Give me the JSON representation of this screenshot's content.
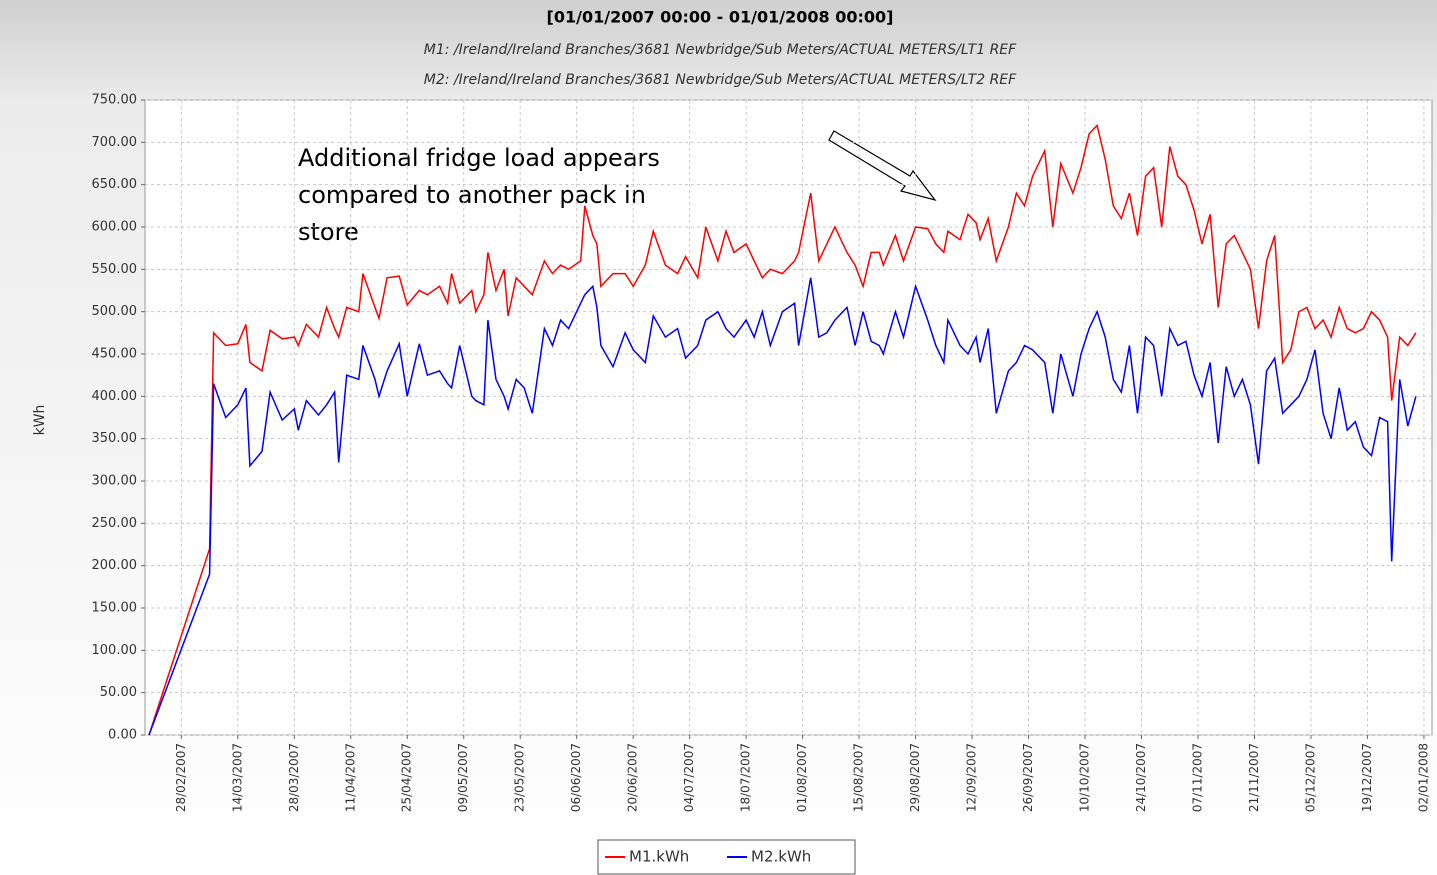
{
  "chart_data": {
    "type": "line",
    "title": "[01/01/2007 00:00 - 01/01/2008 00:00]",
    "subtitles": [
      "M1: /Ireland/Ireland Branches/3681 Newbridge/Sub Meters/ACTUAL METERS/LT1 REF",
      "M2: /Ireland/Ireland Branches/3681 Newbridge/Sub Meters/ACTUAL METERS/LT2 REF"
    ],
    "y_label": "kWh",
    "annotation": [
      "Additional fridge load appears",
      "compared to another pack in",
      "store"
    ],
    "x": [
      "20/02/2007",
      "07/03/2007",
      "08/03/2007",
      "11/03/2007",
      "14/03/2007",
      "16/03/2007",
      "17/03/2007",
      "20/03/2007",
      "22/03/2007",
      "25/03/2007",
      "28/03/2007",
      "29/03/2007",
      "31/03/2007",
      "03/04/2007",
      "05/04/2007",
      "07/04/2007",
      "08/04/2007",
      "10/04/2007",
      "13/04/2007",
      "14/04/2007",
      "17/04/2007",
      "18/04/2007",
      "20/04/2007",
      "23/04/2007",
      "25/04/2007",
      "28/04/2007",
      "30/04/2007",
      "03/05/2007",
      "05/05/2007",
      "06/05/2007",
      "08/05/2007",
      "11/05/2007",
      "12/05/2007",
      "14/05/2007",
      "15/05/2007",
      "17/05/2007",
      "19/05/2007",
      "20/05/2007",
      "22/05/2007",
      "24/05/2007",
      "26/05/2007",
      "29/05/2007",
      "31/05/2007",
      "02/06/2007",
      "04/06/2007",
      "07/06/2007",
      "08/06/2007",
      "10/06/2007",
      "11/06/2007",
      "12/06/2007",
      "15/06/2007",
      "18/06/2007",
      "20/06/2007",
      "23/06/2007",
      "25/06/2007",
      "28/06/2007",
      "01/07/2007",
      "03/07/2007",
      "06/07/2007",
      "08/07/2007",
      "11/07/2007",
      "13/07/2007",
      "15/07/2007",
      "18/07/2007",
      "20/07/2007",
      "22/07/2007",
      "24/07/2007",
      "27/07/2007",
      "30/07/2007",
      "31/07/2007",
      "03/08/2007",
      "05/08/2007",
      "07/08/2007",
      "09/08/2007",
      "12/08/2007",
      "14/08/2007",
      "16/08/2007",
      "18/08/2007",
      "20/08/2007",
      "21/08/2007",
      "24/08/2007",
      "26/08/2007",
      "29/08/2007",
      "01/09/2007",
      "03/09/2007",
      "05/09/2007",
      "06/09/2007",
      "09/09/2007",
      "11/09/2007",
      "13/09/2007",
      "14/09/2007",
      "16/09/2007",
      "18/09/2007",
      "21/09/2007",
      "23/09/2007",
      "25/09/2007",
      "27/09/2007",
      "30/09/2007",
      "02/10/2007",
      "04/10/2007",
      "07/10/2007",
      "09/10/2007",
      "11/10/2007",
      "13/10/2007",
      "15/10/2007",
      "17/10/2007",
      "19/10/2007",
      "21/10/2007",
      "23/10/2007",
      "25/10/2007",
      "27/10/2007",
      "29/10/2007",
      "31/10/2007",
      "02/11/2007",
      "04/11/2007",
      "06/11/2007",
      "08/11/2007",
      "10/11/2007",
      "12/11/2007",
      "14/11/2007",
      "16/11/2007",
      "18/11/2007",
      "20/11/2007",
      "22/11/2007",
      "24/11/2007",
      "26/11/2007",
      "28/11/2007",
      "30/11/2007",
      "02/12/2007",
      "04/12/2007",
      "06/12/2007",
      "08/12/2007",
      "10/12/2007",
      "12/12/2007",
      "14/12/2007",
      "16/12/2007",
      "18/12/2007",
      "20/12/2007",
      "22/12/2007",
      "24/12/2007",
      "25/12/2007",
      "27/12/2007",
      "29/12/2007",
      "31/12/2007"
    ],
    "series": [
      {
        "name": "M1.kWh",
        "color": "#ff0000",
        "values": [
          0,
          220,
          475,
          460,
          462,
          485,
          440,
          430,
          478,
          468,
          470,
          460,
          485,
          470,
          505,
          480,
          470,
          505,
          500,
          545,
          505,
          492,
          540,
          542,
          508,
          525,
          520,
          530,
          510,
          545,
          510,
          525,
          500,
          520,
          570,
          525,
          550,
          495,
          540,
          530,
          520,
          560,
          545,
          555,
          550,
          560,
          625,
          590,
          580,
          530,
          545,
          545,
          530,
          555,
          595,
          555,
          545,
          565,
          540,
          600,
          560,
          595,
          570,
          580,
          560,
          540,
          550,
          545,
          560,
          570,
          640,
          560,
          580,
          600,
          570,
          555,
          530,
          570,
          570,
          555,
          590,
          560,
          600,
          598,
          580,
          570,
          595,
          585,
          615,
          605,
          585,
          610,
          560,
          600,
          640,
          625,
          660,
          690,
          600,
          675,
          640,
          670,
          710,
          720,
          680,
          625,
          610,
          640,
          590,
          660,
          670,
          600,
          695,
          660,
          650,
          620,
          580,
          615,
          505,
          580,
          590,
          570,
          550,
          480,
          560,
          590,
          440,
          455,
          500,
          505,
          480,
          490,
          470,
          505,
          480,
          475,
          480,
          500,
          490,
          470,
          395,
          470,
          460,
          475
        ]
      },
      {
        "name": "M2.kWh",
        "color": "#0000ff",
        "values": [
          0,
          190,
          415,
          375,
          390,
          410,
          318,
          335,
          405,
          372,
          385,
          360,
          395,
          378,
          390,
          405,
          322,
          425,
          420,
          460,
          420,
          400,
          430,
          462,
          400,
          462,
          425,
          430,
          415,
          410,
          460,
          400,
          395,
          390,
          490,
          420,
          400,
          385,
          420,
          410,
          380,
          480,
          460,
          490,
          480,
          510,
          520,
          530,
          505,
          460,
          435,
          475,
          455,
          440,
          495,
          470,
          480,
          445,
          460,
          490,
          500,
          480,
          470,
          490,
          470,
          500,
          460,
          500,
          510,
          460,
          540,
          470,
          475,
          490,
          505,
          460,
          500,
          465,
          460,
          450,
          500,
          470,
          530,
          490,
          460,
          440,
          490,
          460,
          450,
          470,
          440,
          480,
          380,
          430,
          440,
          460,
          455,
          440,
          380,
          450,
          400,
          450,
          480,
          500,
          470,
          420,
          405,
          460,
          380,
          470,
          460,
          400,
          480,
          460,
          465,
          425,
          400,
          440,
          345,
          435,
          400,
          420,
          390,
          320,
          430,
          445,
          380,
          390,
          400,
          420,
          455,
          380,
          350,
          410,
          360,
          370,
          340,
          330,
          375,
          370,
          205,
          420,
          365,
          400
        ]
      }
    ],
    "xlim": [
      "19/02/2007",
      "04/01/2008"
    ],
    "xticks": [
      "28/02/2007",
      "14/03/2007",
      "28/03/2007",
      "11/04/2007",
      "25/04/2007",
      "09/05/2007",
      "23/05/2007",
      "06/06/2007",
      "20/06/2007",
      "04/07/2007",
      "18/07/2007",
      "01/08/2007",
      "15/08/2007",
      "29/08/2007",
      "12/09/2007",
      "26/09/2007",
      "10/10/2007",
      "24/10/2007",
      "07/11/2007",
      "21/11/2007",
      "05/12/2007",
      "19/12/2007",
      "02/01/2008"
    ],
    "ylim": [
      0,
      750
    ],
    "yticks": [
      {
        "value": 0,
        "label": "0.00"
      },
      {
        "value": 50,
        "label": "50.00"
      },
      {
        "value": 100,
        "label": "100.00"
      },
      {
        "value": 150,
        "label": "150.00"
      },
      {
        "value": 200,
        "label": "200.00"
      },
      {
        "value": 250,
        "label": "250.00"
      },
      {
        "value": 300,
        "label": "300.00"
      },
      {
        "value": 350,
        "label": "350.00"
      },
      {
        "value": 400,
        "label": "400.00"
      },
      {
        "value": 450,
        "label": "450.00"
      },
      {
        "value": 500,
        "label": "500.00"
      },
      {
        "value": 550,
        "label": "550.00"
      },
      {
        "value": 600,
        "label": "600.00"
      },
      {
        "value": 650,
        "label": "650.00"
      },
      {
        "value": 700,
        "label": "700.00"
      },
      {
        "value": 750,
        "label": "750.00"
      }
    ],
    "grid": true
  }
}
